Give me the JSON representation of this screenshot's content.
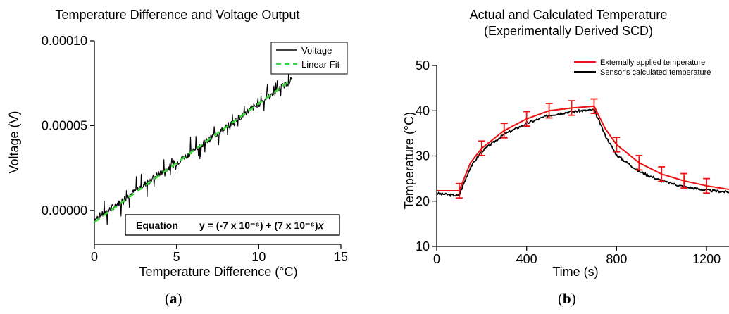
{
  "chart_data": [
    {
      "type": "line",
      "panel_label": "a",
      "title": "Temperature Difference and Voltage Output",
      "xlabel": "Temperature Difference (°C)",
      "ylabel": "Voltage (V)",
      "xlim": [
        0,
        15
      ],
      "ylim": [
        -2e-05,
        0.0001
      ],
      "xticks": [
        "0",
        "5",
        "10",
        "15"
      ],
      "yticks": [
        "0.00000",
        "0.00005",
        "0.00010"
      ],
      "grid": false,
      "legend_position": "top-right",
      "series": [
        {
          "name": "Voltage",
          "color": "#000000",
          "style": "solid",
          "noisy": true,
          "x": [
            0,
            1,
            2,
            3,
            4,
            5,
            6,
            7,
            8,
            9,
            10,
            11,
            12
          ],
          "y": [
            -5e-06,
            1e-06,
            8e-06,
            1.5e-05,
            2.2e-05,
            2.8e-05,
            3.5e-05,
            4.2e-05,
            4.9e-05,
            5.6e-05,
            6.3e-05,
            7e-05,
            7.7e-05
          ]
        },
        {
          "name": "Linear Fit",
          "color": "#33dd33",
          "style": "dashed",
          "x": [
            0,
            12
          ],
          "y": [
            -7e-06,
            7.7e-05
          ]
        }
      ],
      "equation_label": "Equation",
      "equation": "y = (-7 x 10⁻⁶) + (7 x 10⁻⁶)𝑥"
    },
    {
      "type": "line",
      "panel_label": "b",
      "title": "Actual and Calculated Temperature",
      "subtitle": "(Experimentally Derived SCD)",
      "xlabel": "Time (s)",
      "ylabel": "Temperature (°C)",
      "xlim": [
        0,
        1300
      ],
      "ylim": [
        10,
        50
      ],
      "xticks": [
        "0",
        "400",
        "800",
        "1200"
      ],
      "yticks": [
        "10",
        "20",
        "30",
        "40",
        "50"
      ],
      "grid": false,
      "legend_position": "top-right",
      "series": [
        {
          "name": "Externally applied temperature",
          "color": "#ee1111",
          "x": [
            0,
            100,
            150,
            200,
            300,
            400,
            500,
            600,
            700,
            750,
            800,
            900,
            1000,
            1100,
            1200,
            1300
          ],
          "y": [
            22.3,
            22.3,
            28.5,
            31.7,
            35.6,
            38.2,
            40.0,
            40.6,
            41.0,
            36.0,
            32.5,
            28.5,
            26.0,
            24.5,
            23.4,
            22.6
          ],
          "error_x": [
            100,
            200,
            300,
            400,
            500,
            600,
            700,
            800,
            900,
            1000,
            1100,
            1200
          ],
          "error_y": [
            22.3,
            31.7,
            35.6,
            38.2,
            40.0,
            40.6,
            41.0,
            32.5,
            28.5,
            26.0,
            24.5,
            23.4
          ],
          "error": 1.6
        },
        {
          "name": "Sensor's calculated temperature",
          "color": "#000000",
          "x": [
            0,
            100,
            105,
            150,
            200,
            300,
            400,
            500,
            600,
            700,
            750,
            800,
            900,
            1000,
            1100,
            1200,
            1300
          ],
          "y": [
            21.7,
            21.2,
            22.0,
            27.5,
            31.0,
            34.8,
            37.2,
            39.0,
            39.8,
            40.2,
            34.5,
            30.2,
            26.6,
            24.5,
            23.2,
            22.4,
            22.0
          ]
        }
      ]
    }
  ]
}
